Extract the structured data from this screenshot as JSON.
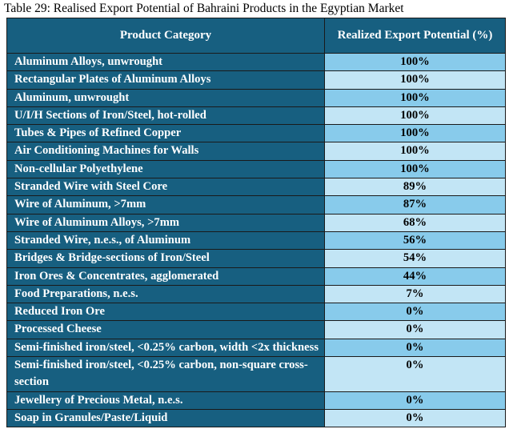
{
  "caption": "Table 29: Realised Export Potential of Bahraini Products in the Egyptian Market",
  "headers": [
    "Product Category",
    "Realized Export Potential (%)"
  ],
  "rows": [
    {
      "category": "Aluminum Alloys, unwrought",
      "value": "100%"
    },
    {
      "category": "Rectangular Plates of Aluminum Alloys",
      "value": "100%"
    },
    {
      "category": "Aluminum, unwrought",
      "value": "100%"
    },
    {
      "category": "U/I/H Sections of Iron/Steel, hot-rolled",
      "value": "100%"
    },
    {
      "category": "Tubes & Pipes of Refined Copper",
      "value": "100%"
    },
    {
      "category": "Air Conditioning Machines for Walls",
      "value": "100%"
    },
    {
      "category": "Non-cellular Polyethylene",
      "value": "100%"
    },
    {
      "category": "Stranded Wire with Steel Core",
      "value": "89%"
    },
    {
      "category": "Wire of Aluminum, >7mm",
      "value": "87%"
    },
    {
      "category": "Wire of Aluminum Alloys, >7mm",
      "value": "68%"
    },
    {
      "category": "Stranded Wire, n.e.s., of Aluminum",
      "value": "56%"
    },
    {
      "category": "Bridges & Bridge-sections of Iron/Steel",
      "value": "54%"
    },
    {
      "category": "Iron Ores & Concentrates, agglomerated",
      "value": "44%"
    },
    {
      "category": "Food Preparations, n.e.s.",
      "value": "7%"
    },
    {
      "category": "Reduced Iron Ore",
      "value": "0%"
    },
    {
      "category": "Processed Cheese",
      "value": "0%"
    },
    {
      "category": "Semi-finished iron/steel, <0.25% carbon, width <2x thickness",
      "value": "0%"
    },
    {
      "category": "Semi-finished iron/steel, <0.25% carbon, non-square cross-section",
      "value": "0%"
    },
    {
      "category": "Jewellery of Precious Metal, n.e.s.",
      "value": "0%"
    },
    {
      "category": "Soap in Granules/Paste/Liquid",
      "value": "0%"
    }
  ]
}
